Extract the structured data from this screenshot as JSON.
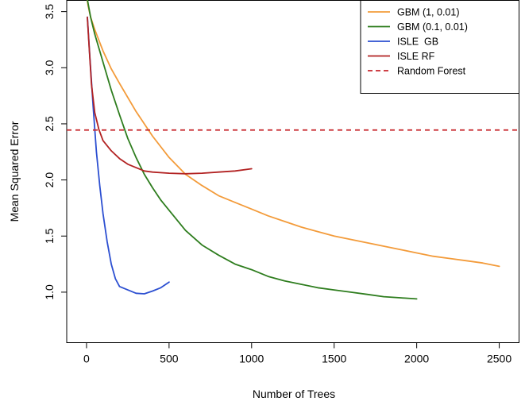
{
  "chart_data": {
    "type": "line",
    "title": "",
    "xlabel": "Number of Trees",
    "ylabel": "Mean Squared Error",
    "xlim": [
      -120,
      2620
    ],
    "ylim": [
      0.55,
      3.6
    ],
    "xticks": [
      0,
      500,
      1000,
      1500,
      2000,
      2500
    ],
    "yticks": [
      1.0,
      1.5,
      2.0,
      2.5,
      3.0,
      3.5
    ],
    "ytick_labels": [
      "1.0",
      "1.5",
      "2.0",
      "2.5",
      "3.0",
      "3.5"
    ],
    "legend_position": "top-right",
    "series": [
      {
        "name": "GBM (1, 0.01)",
        "color": "#F39B3A",
        "dash": "solid",
        "x": [
          0,
          10,
          25,
          50,
          100,
          150,
          200,
          300,
          400,
          500,
          600,
          700,
          800,
          900,
          1000,
          1100,
          1200,
          1300,
          1400,
          1500,
          1600,
          1700,
          1800,
          1900,
          2000,
          2100,
          2200,
          2300,
          2400,
          2500
        ],
        "y": [
          3.65,
          3.55,
          3.45,
          3.34,
          3.15,
          2.99,
          2.86,
          2.61,
          2.39,
          2.2,
          2.05,
          1.95,
          1.86,
          1.8,
          1.74,
          1.68,
          1.63,
          1.58,
          1.54,
          1.5,
          1.47,
          1.44,
          1.41,
          1.38,
          1.35,
          1.32,
          1.3,
          1.28,
          1.26,
          1.23
        ]
      },
      {
        "name": "GBM (0.1, 0.01)",
        "color": "#2E7D1E",
        "dash": "solid",
        "x": [
          0,
          25,
          50,
          100,
          150,
          200,
          250,
          300,
          350,
          400,
          450,
          500,
          600,
          700,
          800,
          900,
          1000,
          1100,
          1200,
          1300,
          1400,
          1500,
          1600,
          1700,
          1800,
          1900,
          2000
        ],
        "y": [
          3.65,
          3.45,
          3.3,
          3.05,
          2.8,
          2.58,
          2.37,
          2.2,
          2.05,
          1.93,
          1.82,
          1.73,
          1.55,
          1.42,
          1.33,
          1.25,
          1.2,
          1.14,
          1.1,
          1.07,
          1.04,
          1.02,
          1.0,
          0.98,
          0.96,
          0.95,
          0.94
        ]
      },
      {
        "name": "ISLE  GB",
        "color": "#2C4FD1",
        "dash": "solid",
        "x": [
          5,
          20,
          40,
          60,
          80,
          100,
          125,
          150,
          175,
          200,
          250,
          300,
          350,
          400,
          450,
          500
        ],
        "y": [
          3.45,
          3.1,
          2.65,
          2.25,
          1.95,
          1.7,
          1.45,
          1.25,
          1.12,
          1.05,
          1.02,
          0.99,
          0.985,
          1.01,
          1.04,
          1.09
        ]
      },
      {
        "name": "ISLE RF",
        "color": "#B22222",
        "dash": "solid",
        "x": [
          5,
          15,
          30,
          50,
          75,
          100,
          150,
          200,
          250,
          300,
          350,
          400,
          500,
          600,
          700,
          800,
          900,
          1000
        ],
        "y": [
          3.45,
          3.2,
          2.85,
          2.6,
          2.45,
          2.35,
          2.26,
          2.19,
          2.14,
          2.11,
          2.08,
          2.07,
          2.06,
          2.055,
          2.06,
          2.07,
          2.08,
          2.1
        ]
      },
      {
        "name": "Random Forest",
        "color": "#C8262C",
        "dash": "dashed",
        "horizontal_y": 2.445
      }
    ]
  }
}
